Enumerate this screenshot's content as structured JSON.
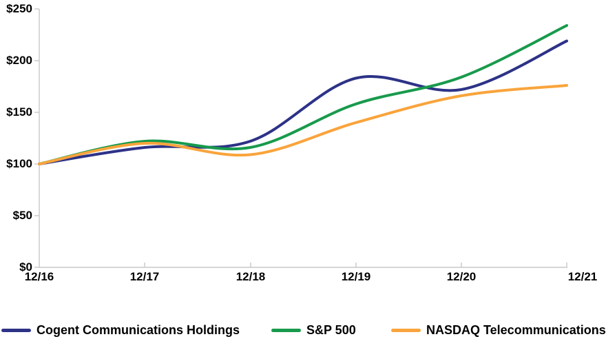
{
  "chart_data": {
    "type": "line",
    "title": "",
    "x_categories": [
      "12/16",
      "12/17",
      "12/18",
      "12/19",
      "12/20",
      "12/21"
    ],
    "y_tick_labels": [
      "$250",
      "$200",
      "$150",
      "$100",
      "$50",
      "$0"
    ],
    "ylim": [
      0,
      250
    ],
    "y_tick_step": 50,
    "grid": false,
    "smoothed_lines": true,
    "legend_position": "bottom",
    "axis_color": "#c8c8c8",
    "series": [
      {
        "name": "Cogent Communications Holdings",
        "color": "#2d3287",
        "values": [
          100,
          116,
          122,
          183,
          172,
          219
        ]
      },
      {
        "name": "S&P 500",
        "color": "#189a4c",
        "values": [
          100,
          122,
          116,
          158,
          184,
          234
        ]
      },
      {
        "name": "NASDAQ Telecommunications",
        "color": "#f9a43c",
        "values": [
          100,
          120,
          109,
          140,
          166,
          176
        ]
      }
    ]
  }
}
